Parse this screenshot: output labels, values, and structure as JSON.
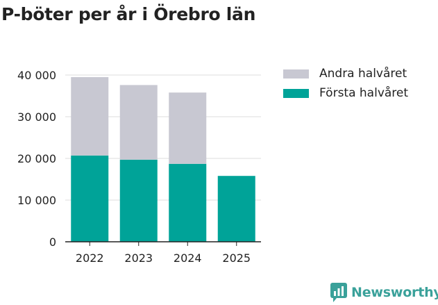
{
  "title": "P-böter per år i Örebro län",
  "brand": {
    "name": "Newsworthy"
  },
  "colors": {
    "first_half": "#00a398",
    "second_half": "#c8c8d2",
    "axis": "#222222",
    "grid": "#dddddd",
    "brand": "#3aa19a"
  },
  "chart_data": {
    "type": "bar",
    "stacked": true,
    "title": "P-böter per år i Örebro län",
    "categories": [
      "2022",
      "2023",
      "2024",
      "2025"
    ],
    "series": [
      {
        "name": "Första halvåret",
        "values": [
          20700,
          19700,
          18700,
          15800
        ]
      },
      {
        "name": "Andra halvåret",
        "values": [
          18800,
          17900,
          17100,
          null
        ]
      }
    ],
    "ylim": [
      0,
      40000
    ],
    "yticks": [
      0,
      10000,
      20000,
      30000,
      40000
    ],
    "ytick_labels": [
      "0",
      "10 000",
      "20 000",
      "30 000",
      "40 000"
    ],
    "xlabel": "",
    "ylabel": "",
    "grid": true,
    "legend": [
      "Andra halvåret",
      "Första halvåret"
    ],
    "legend_position": "top-right"
  }
}
